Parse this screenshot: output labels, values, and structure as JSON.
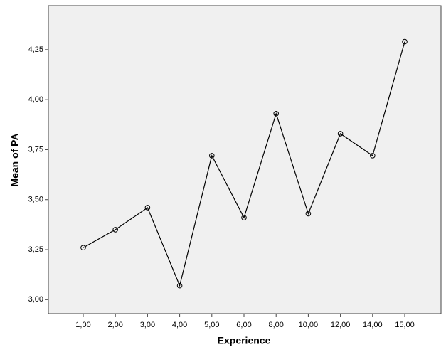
{
  "chart_data": {
    "type": "line",
    "x_label": "Experience",
    "y_label": "Mean of PA",
    "categories": [
      "1,00",
      "2,00",
      "3,00",
      "4,00",
      "5,00",
      "6,00",
      "8,00",
      "10,00",
      "12,00",
      "14,00",
      "15,00"
    ],
    "values": [
      3.26,
      3.35,
      3.46,
      3.07,
      3.72,
      3.41,
      3.93,
      3.43,
      3.83,
      3.72,
      4.29
    ],
    "color": "#000000",
    "ylim": [
      2.93,
      4.47
    ],
    "yticks": [
      {
        "value": 3,
        "label": "3,00"
      },
      {
        "value": 3.25,
        "label": "3,25"
      },
      {
        "value": 3.5,
        "label": "3,50"
      },
      {
        "value": 3.75,
        "label": "3,75"
      },
      {
        "value": 4,
        "label": "4,00"
      },
      {
        "value": 4.25,
        "label": "4,25"
      }
    ],
    "grid": false
  }
}
